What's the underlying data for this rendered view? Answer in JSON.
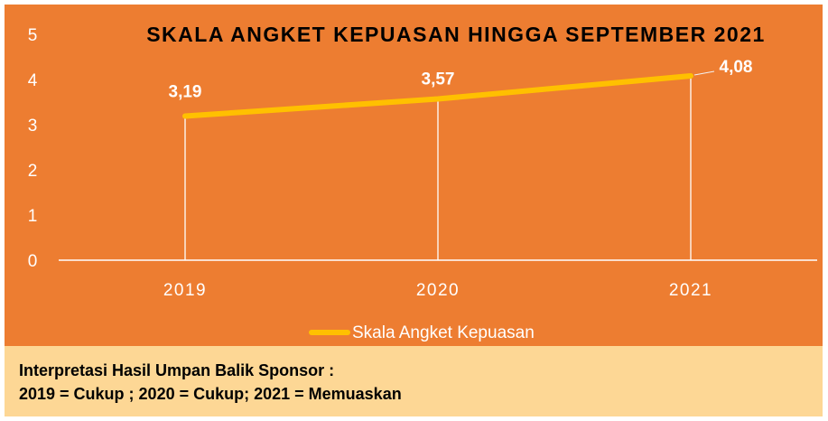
{
  "colors": {
    "chart_background": "#ed7d31",
    "line": "#ffc000",
    "text": "#ffffff",
    "title": "#000000",
    "note_background": "#fdd795",
    "note_text": "#000000"
  },
  "chart_data": {
    "type": "line",
    "title": "SKALA ANGKET KEPUASAN HINGGA SEPTEMBER 2021",
    "categories": [
      "2019",
      "2020",
      "2021"
    ],
    "series": [
      {
        "name": "Skala Angket Kepuasan",
        "values": [
          3.19,
          3.57,
          4.08
        ]
      }
    ],
    "data_labels": [
      "3,19",
      "3,57",
      "4,08"
    ],
    "y_ticks": [
      0,
      1,
      2,
      3,
      4,
      5
    ],
    "ylim": [
      0,
      5
    ],
    "xlabel": "",
    "ylabel": "",
    "grid": false,
    "drop_lines": true,
    "legend": "bottom"
  },
  "note": {
    "line1": "Interpretasi Hasil Umpan Balik Sponsor :",
    "line2": "2019 = Cukup ; 2020 = Cukup; 2021 = Memuaskan"
  }
}
